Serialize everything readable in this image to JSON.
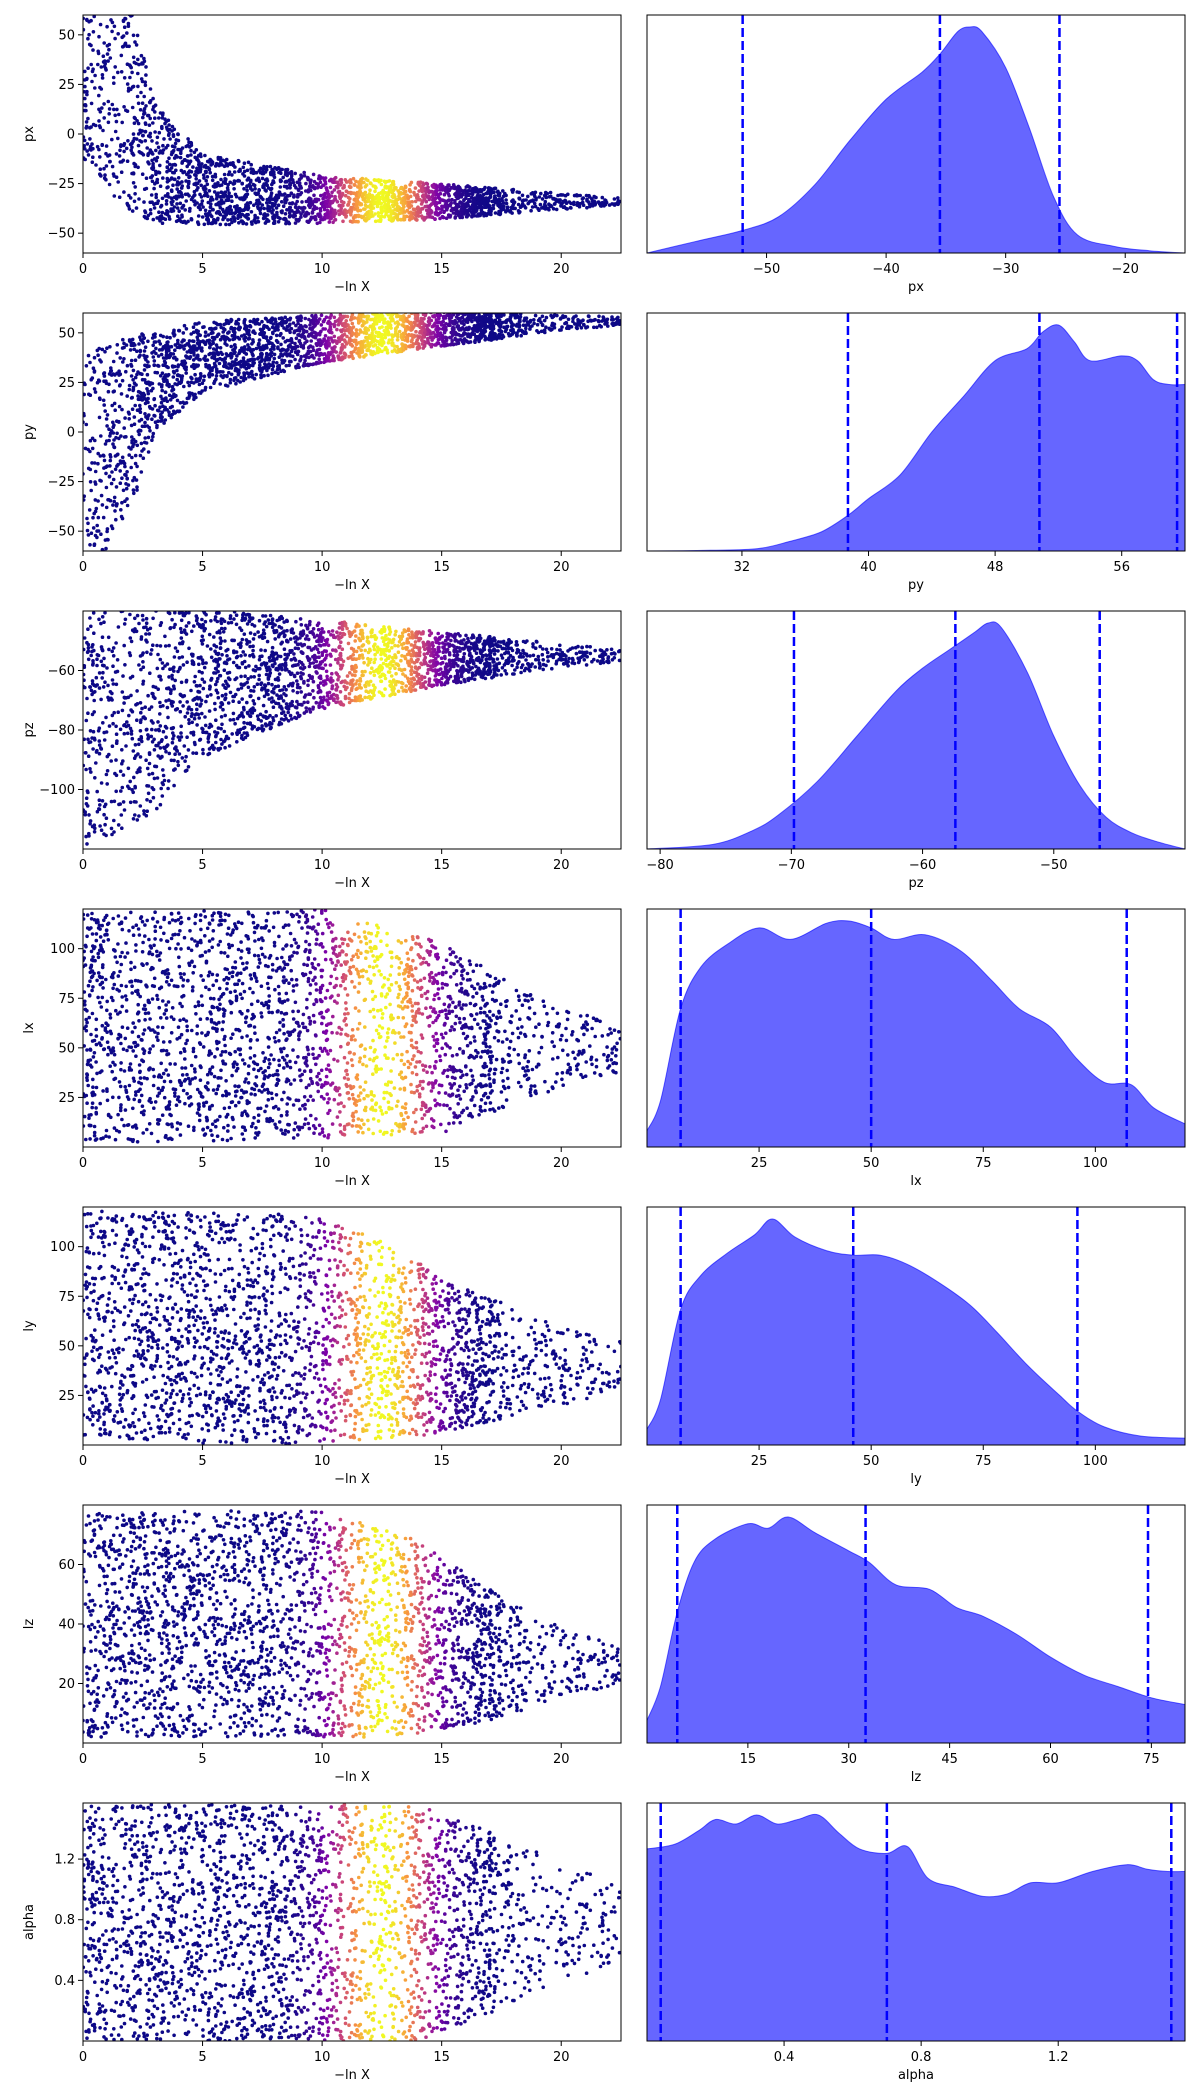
{
  "figure": {
    "background": "#ffffff",
    "trace_colormap": "plasma",
    "kde_fill_color": "#0000ff",
    "kde_fill_opacity": 0.6,
    "quantile_line_color": "#0000ff",
    "quantile_line_style": "dashed"
  },
  "chart_data": [
    {
      "type": "scatter",
      "panel": "trace",
      "param": "px",
      "xlabel": "−ln X",
      "ylabel": "px",
      "xlim": [
        0,
        22.5
      ],
      "ylim": [
        -60,
        60
      ],
      "xticks": [
        0,
        5,
        10,
        15,
        20
      ],
      "xtick_labels": [
        "0",
        "5",
        "10",
        "15",
        "20"
      ],
      "yticks": [
        -50,
        -25,
        0,
        25,
        50
      ],
      "ytick_labels": [
        "−50",
        "−25",
        "0",
        "25",
        "50"
      ],
      "trend": {
        "center": [
          [
            0,
            45
          ],
          [
            2,
            15
          ],
          [
            3,
            -15
          ],
          [
            5,
            -28
          ],
          [
            10,
            -33
          ],
          [
            15,
            -34
          ],
          [
            20,
            -34
          ],
          [
            22.5,
            -34
          ]
        ],
        "spread": [
          [
            0,
            60
          ],
          [
            2,
            55
          ],
          [
            3,
            30
          ],
          [
            5,
            18
          ],
          [
            10,
            12
          ],
          [
            15,
            9
          ],
          [
            20,
            4
          ],
          [
            22.5,
            2
          ]
        ]
      }
    },
    {
      "type": "area",
      "panel": "posterior",
      "param": "px",
      "xlabel": "px",
      "xlim": [
        -60,
        -15
      ],
      "xticks": [
        -50,
        -40,
        -30,
        -20
      ],
      "xtick_labels": [
        "−50",
        "−40",
        "−30",
        "−20"
      ],
      "quantiles": [
        -52,
        -35.5,
        -25.5
      ],
      "density": [
        [
          -60,
          0.0
        ],
        [
          -56,
          0.05
        ],
        [
          -52,
          0.1
        ],
        [
          -49,
          0.16
        ],
        [
          -46,
          0.3
        ],
        [
          -43,
          0.5
        ],
        [
          -40,
          0.68
        ],
        [
          -37,
          0.8
        ],
        [
          -35.5,
          0.88
        ],
        [
          -34,
          0.98
        ],
        [
          -33,
          1.0
        ],
        [
          -32,
          0.98
        ],
        [
          -30,
          0.82
        ],
        [
          -28,
          0.55
        ],
        [
          -26,
          0.25
        ],
        [
          -24,
          0.08
        ],
        [
          -21,
          0.03
        ],
        [
          -18,
          0.01
        ],
        [
          -15,
          0.0
        ]
      ]
    },
    {
      "type": "scatter",
      "panel": "trace",
      "param": "py",
      "xlabel": "−ln X",
      "ylabel": "py",
      "xlim": [
        0,
        22.5
      ],
      "ylim": [
        -60,
        60
      ],
      "xticks": [
        0,
        5,
        10,
        15,
        20
      ],
      "xtick_labels": [
        "0",
        "5",
        "10",
        "15",
        "20"
      ],
      "yticks": [
        -50,
        -25,
        0,
        25,
        50
      ],
      "ytick_labels": [
        "−50",
        "−25",
        "0",
        "25",
        "50"
      ],
      "trend": {
        "center": [
          [
            0,
            -20
          ],
          [
            2,
            5
          ],
          [
            3,
            25
          ],
          [
            5,
            38
          ],
          [
            10,
            47
          ],
          [
            15,
            52
          ],
          [
            20,
            55
          ],
          [
            22.5,
            56
          ]
        ],
        "spread": [
          [
            0,
            60
          ],
          [
            2,
            45
          ],
          [
            3,
            25
          ],
          [
            5,
            18
          ],
          [
            10,
            12
          ],
          [
            15,
            9
          ],
          [
            20,
            4
          ],
          [
            22.5,
            2
          ]
        ]
      }
    },
    {
      "type": "area",
      "panel": "posterior",
      "param": "py",
      "xlabel": "py",
      "xlim": [
        26,
        60
      ],
      "xticks": [
        32,
        40,
        48,
        56
      ],
      "xtick_labels": [
        "32",
        "40",
        "48",
        "56"
      ],
      "quantiles": [
        38.7,
        50.8,
        59.5
      ],
      "density": [
        [
          26,
          0.0
        ],
        [
          30,
          0.003
        ],
        [
          33,
          0.01
        ],
        [
          35,
          0.04
        ],
        [
          37,
          0.08
        ],
        [
          38.7,
          0.15
        ],
        [
          40,
          0.22
        ],
        [
          42,
          0.32
        ],
        [
          44,
          0.5
        ],
        [
          46,
          0.65
        ],
        [
          48,
          0.8
        ],
        [
          50,
          0.85
        ],
        [
          51,
          0.92
        ],
        [
          52,
          0.95
        ],
        [
          53,
          0.88
        ],
        [
          54,
          0.8
        ],
        [
          56,
          0.82
        ],
        [
          57,
          0.8
        ],
        [
          58,
          0.72
        ],
        [
          59,
          0.7
        ],
        [
          60,
          0.7
        ]
      ]
    },
    {
      "type": "scatter",
      "panel": "trace",
      "param": "pz",
      "xlabel": "−ln X",
      "ylabel": "pz",
      "xlim": [
        0,
        22.5
      ],
      "ylim": [
        -120,
        -40
      ],
      "xticks": [
        0,
        5,
        10,
        15,
        20
      ],
      "xtick_labels": [
        "0",
        "5",
        "10",
        "15",
        "20"
      ],
      "yticks": [
        -100,
        -80,
        -60
      ],
      "ytick_labels": [
        "−100",
        "−80",
        "−60"
      ],
      "trend": {
        "center": [
          [
            0,
            -75
          ],
          [
            3,
            -68
          ],
          [
            5,
            -64
          ],
          [
            10,
            -58
          ],
          [
            15,
            -56
          ],
          [
            20,
            -55
          ],
          [
            22.5,
            -55
          ]
        ],
        "spread": [
          [
            0,
            45
          ],
          [
            3,
            40
          ],
          [
            5,
            25
          ],
          [
            10,
            15
          ],
          [
            15,
            9
          ],
          [
            20,
            4
          ],
          [
            22.5,
            2
          ]
        ]
      }
    },
    {
      "type": "area",
      "panel": "posterior",
      "param": "pz",
      "xlabel": "pz",
      "xlim": [
        -81,
        -40
      ],
      "xticks": [
        -80,
        -70,
        -60,
        -50
      ],
      "xtick_labels": [
        "−80",
        "−70",
        "−60",
        "−50"
      ],
      "quantiles": [
        -69.8,
        -57.5,
        -46.5
      ],
      "density": [
        [
          -81,
          0.0
        ],
        [
          -76,
          0.02
        ],
        [
          -73,
          0.08
        ],
        [
          -71,
          0.15
        ],
        [
          -68,
          0.3
        ],
        [
          -65,
          0.5
        ],
        [
          -62,
          0.7
        ],
        [
          -60,
          0.8
        ],
        [
          -58,
          0.88
        ],
        [
          -56,
          0.96
        ],
        [
          -55,
          1.0
        ],
        [
          -54,
          0.98
        ],
        [
          -52,
          0.78
        ],
        [
          -50,
          0.5
        ],
        [
          -48,
          0.28
        ],
        [
          -46,
          0.14
        ],
        [
          -44,
          0.07
        ],
        [
          -42,
          0.03
        ],
        [
          -40,
          0.0
        ]
      ]
    },
    {
      "type": "scatter",
      "panel": "trace",
      "param": "lx",
      "xlabel": "−ln X",
      "ylabel": "lx",
      "xlim": [
        0,
        22.5
      ],
      "ylim": [
        0,
        120
      ],
      "xticks": [
        0,
        5,
        10,
        15,
        20
      ],
      "xtick_labels": [
        "0",
        "5",
        "10",
        "15",
        "20"
      ],
      "yticks": [
        25,
        50,
        75,
        100
      ],
      "ytick_labels": [
        "25",
        "50",
        "75",
        "100"
      ],
      "trend": {
        "center": [
          [
            0,
            60
          ],
          [
            10,
            62
          ],
          [
            15,
            55
          ],
          [
            20,
            50
          ],
          [
            22.5,
            50
          ]
        ],
        "spread": [
          [
            0,
            58
          ],
          [
            10,
            58
          ],
          [
            15,
            48
          ],
          [
            18,
            30
          ],
          [
            20,
            20
          ],
          [
            22.5,
            12
          ]
        ]
      }
    },
    {
      "type": "area",
      "panel": "posterior",
      "param": "lx",
      "xlabel": "lx",
      "xlim": [
        0,
        120
      ],
      "xticks": [
        25,
        50,
        75,
        100
      ],
      "xtick_labels": [
        "25",
        "50",
        "75",
        "100"
      ],
      "quantiles": [
        7.5,
        50,
        107
      ],
      "density": [
        [
          0,
          0.07
        ],
        [
          3,
          0.2
        ],
        [
          7.5,
          0.6
        ],
        [
          12,
          0.78
        ],
        [
          18,
          0.88
        ],
        [
          25,
          0.95
        ],
        [
          32,
          0.9
        ],
        [
          40,
          0.97
        ],
        [
          45,
          0.98
        ],
        [
          50,
          0.95
        ],
        [
          55,
          0.9
        ],
        [
          62,
          0.92
        ],
        [
          70,
          0.85
        ],
        [
          77,
          0.72
        ],
        [
          83,
          0.6
        ],
        [
          90,
          0.52
        ],
        [
          96,
          0.38
        ],
        [
          102,
          0.28
        ],
        [
          108,
          0.27
        ],
        [
          113,
          0.17
        ],
        [
          120,
          0.1
        ]
      ]
    },
    {
      "type": "scatter",
      "panel": "trace",
      "param": "ly",
      "xlabel": "−ln X",
      "ylabel": "ly",
      "xlim": [
        0,
        22.5
      ],
      "ylim": [
        0,
        120
      ],
      "xticks": [
        0,
        5,
        10,
        15,
        20
      ],
      "xtick_labels": [
        "0",
        "5",
        "10",
        "15",
        "20"
      ],
      "yticks": [
        25,
        50,
        75,
        100
      ],
      "ytick_labels": [
        "25",
        "50",
        "75",
        "100"
      ],
      "trend": {
        "center": [
          [
            0,
            60
          ],
          [
            10,
            58
          ],
          [
            13,
            52
          ],
          [
            15,
            45
          ],
          [
            20,
            40
          ],
          [
            22.5,
            40
          ]
        ],
        "spread": [
          [
            0,
            58
          ],
          [
            10,
            58
          ],
          [
            13,
            48
          ],
          [
            16,
            35
          ],
          [
            20,
            20
          ],
          [
            22.5,
            12
          ]
        ]
      }
    },
    {
      "type": "area",
      "panel": "posterior",
      "param": "ly",
      "xlabel": "ly",
      "xlim": [
        0,
        120
      ],
      "xticks": [
        25,
        50,
        75,
        100
      ],
      "xtick_labels": [
        "25",
        "50",
        "75",
        "100"
      ],
      "quantiles": [
        7.5,
        46,
        96
      ],
      "density": [
        [
          0,
          0.07
        ],
        [
          3,
          0.2
        ],
        [
          7.5,
          0.6
        ],
        [
          12,
          0.75
        ],
        [
          18,
          0.85
        ],
        [
          24,
          0.93
        ],
        [
          28,
          1.0
        ],
        [
          33,
          0.92
        ],
        [
          40,
          0.86
        ],
        [
          46,
          0.84
        ],
        [
          52,
          0.84
        ],
        [
          58,
          0.8
        ],
        [
          65,
          0.72
        ],
        [
          72,
          0.62
        ],
        [
          78,
          0.5
        ],
        [
          85,
          0.35
        ],
        [
          92,
          0.22
        ],
        [
          96,
          0.15
        ],
        [
          102,
          0.08
        ],
        [
          110,
          0.04
        ],
        [
          120,
          0.03
        ]
      ]
    },
    {
      "type": "scatter",
      "panel": "trace",
      "param": "lz",
      "xlabel": "−ln X",
      "ylabel": "lz",
      "xlim": [
        0,
        22.5
      ],
      "ylim": [
        0,
        80
      ],
      "xticks": [
        0,
        5,
        10,
        15,
        20
      ],
      "xtick_labels": [
        "0",
        "5",
        "10",
        "15",
        "20"
      ],
      "yticks": [
        20,
        40,
        60
      ],
      "ytick_labels": [
        "20",
        "40",
        "60"
      ],
      "trend": {
        "center": [
          [
            0,
            40
          ],
          [
            10,
            40
          ],
          [
            14,
            35
          ],
          [
            18,
            28
          ],
          [
            22.5,
            26
          ]
        ],
        "spread": [
          [
            0,
            38
          ],
          [
            10,
            38
          ],
          [
            14,
            33
          ],
          [
            17,
            22
          ],
          [
            20,
            12
          ],
          [
            22.5,
            6
          ]
        ]
      }
    },
    {
      "type": "area",
      "panel": "posterior",
      "param": "lz",
      "xlabel": "lz",
      "xlim": [
        0,
        80
      ],
      "xticks": [
        15,
        30,
        45,
        60,
        75
      ],
      "xtick_labels": [
        "15",
        "30",
        "45",
        "60",
        "75"
      ],
      "quantiles": [
        4.5,
        32.5,
        74.5
      ],
      "density": [
        [
          0,
          0.1
        ],
        [
          2,
          0.25
        ],
        [
          4.5,
          0.58
        ],
        [
          7,
          0.8
        ],
        [
          10,
          0.9
        ],
        [
          15,
          0.97
        ],
        [
          18,
          0.95
        ],
        [
          21,
          1.0
        ],
        [
          25,
          0.93
        ],
        [
          30,
          0.85
        ],
        [
          33,
          0.8
        ],
        [
          37,
          0.7
        ],
        [
          42,
          0.68
        ],
        [
          46,
          0.6
        ],
        [
          50,
          0.56
        ],
        [
          55,
          0.48
        ],
        [
          60,
          0.38
        ],
        [
          65,
          0.3
        ],
        [
          70,
          0.25
        ],
        [
          75,
          0.2
        ],
        [
          80,
          0.17
        ]
      ]
    },
    {
      "type": "scatter",
      "panel": "trace",
      "param": "alpha",
      "xlabel": "−ln X",
      "ylabel": "alpha",
      "xlim": [
        0,
        22.5
      ],
      "ylim": [
        0,
        1.57
      ],
      "xticks": [
        0,
        5,
        10,
        15,
        20
      ],
      "xtick_labels": [
        "0",
        "5",
        "10",
        "15",
        "20"
      ],
      "yticks": [
        0.4,
        0.8,
        1.2
      ],
      "ytick_labels": [
        "0.4",
        "0.8",
        "1.2"
      ],
      "trend": {
        "center": [
          [
            0,
            0.78
          ],
          [
            22.5,
            0.78
          ]
        ],
        "spread": [
          [
            0,
            0.78
          ],
          [
            14,
            0.78
          ],
          [
            17,
            0.6
          ],
          [
            20,
            0.4
          ],
          [
            22.5,
            0.25
          ]
        ]
      }
    },
    {
      "type": "area",
      "panel": "posterior",
      "param": "alpha",
      "xlabel": "alpha",
      "xlim": [
        0,
        1.57
      ],
      "xticks": [
        0.4,
        0.8,
        1.2
      ],
      "xtick_labels": [
        "0.4",
        "0.8",
        "1.2"
      ],
      "quantiles": [
        0.04,
        0.7,
        1.53
      ],
      "density": [
        [
          0,
          0.85
        ],
        [
          0.08,
          0.87
        ],
        [
          0.15,
          0.93
        ],
        [
          0.2,
          0.98
        ],
        [
          0.26,
          0.96
        ],
        [
          0.32,
          1.0
        ],
        [
          0.38,
          0.96
        ],
        [
          0.44,
          0.98
        ],
        [
          0.5,
          1.0
        ],
        [
          0.56,
          0.92
        ],
        [
          0.62,
          0.85
        ],
        [
          0.7,
          0.83
        ],
        [
          0.76,
          0.86
        ],
        [
          0.82,
          0.72
        ],
        [
          0.9,
          0.68
        ],
        [
          0.98,
          0.64
        ],
        [
          1.05,
          0.65
        ],
        [
          1.12,
          0.7
        ],
        [
          1.2,
          0.7
        ],
        [
          1.3,
          0.75
        ],
        [
          1.4,
          0.78
        ],
        [
          1.46,
          0.76
        ],
        [
          1.52,
          0.75
        ],
        [
          1.57,
          0.75
        ]
      ]
    }
  ]
}
